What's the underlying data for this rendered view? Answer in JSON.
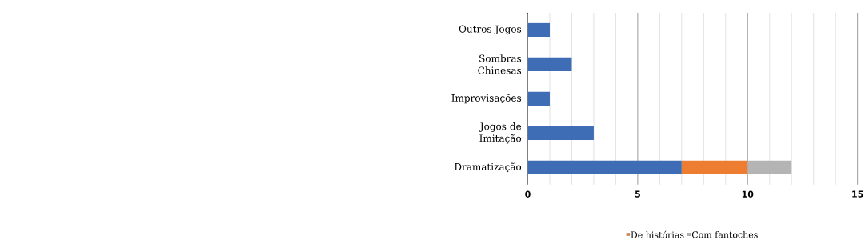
{
  "chart_data": {
    "type": "bar",
    "orientation": "horizontal",
    "stacked": true,
    "categories": [
      "Outros Jogos",
      "Sombras Chinesas",
      "Improvisações",
      "Jogos de Imitação",
      "Dramatização"
    ],
    "series": [
      {
        "color": "#3e6db5",
        "values": [
          1,
          2,
          1,
          3,
          7
        ]
      },
      {
        "name": "De histórias",
        "color": "#ed7d31",
        "values": [
          null,
          null,
          null,
          null,
          3
        ]
      },
      {
        "name": "Com fantoches",
        "color": "#b4b4b4",
        "values": [
          null,
          null,
          null,
          null,
          2
        ]
      }
    ],
    "xlim": [
      0,
      15
    ],
    "xticks": [
      0,
      {
        "value": 1,
        "label": null
      },
      {
        "value": 2,
        "label": null
      },
      {
        "value": 3,
        "label": null
      },
      {
        "value": 4,
        "label": null
      },
      5,
      {
        "value": 6,
        "label": null
      },
      {
        "value": 7,
        "label": null
      },
      {
        "value": 8,
        "label": null
      },
      {
        "value": 9,
        "label": null
      },
      10,
      {
        "value": 11,
        "label": null
      },
      {
        "value": 12,
        "label": null
      },
      {
        "value": 13,
        "label": null
      },
      {
        "value": 14,
        "label": null
      },
      15
    ],
    "grid": "x",
    "legend": "bottom"
  }
}
